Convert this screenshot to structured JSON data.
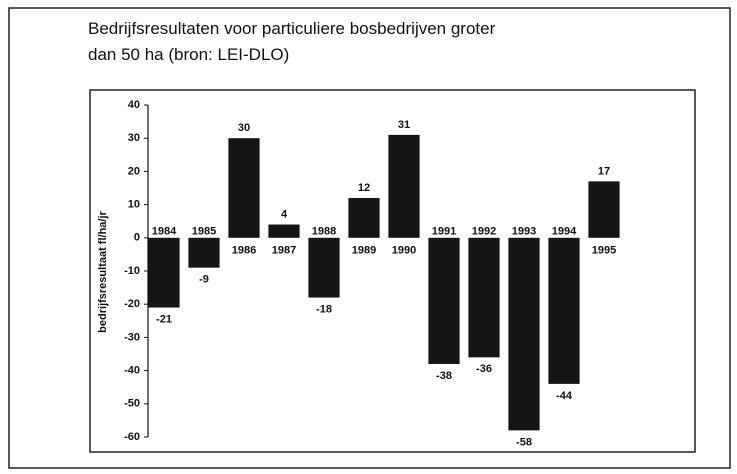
{
  "chart_data": {
    "type": "bar",
    "title": "Bedrijfsresultaten voor particuliere bosbedrijven groter dan 50 ha (bron: LEI-DLO)",
    "y_label": "bedrijfsresultaat fl/ha/jr",
    "categories": [
      "1984",
      "1985",
      "1986",
      "1987",
      "1988",
      "1989",
      "1990",
      "1991",
      "1992",
      "1993",
      "1994",
      "1995"
    ],
    "values": [
      -21,
      -9,
      30,
      4,
      -18,
      12,
      31,
      -38,
      -36,
      -58,
      -44,
      17
    ],
    "color": "#141414",
    "ylim": [
      -60,
      40
    ],
    "yticks": [
      40,
      30,
      20,
      10,
      0,
      -10,
      -20,
      -30,
      -40,
      -50,
      -60
    ],
    "grid": false
  }
}
